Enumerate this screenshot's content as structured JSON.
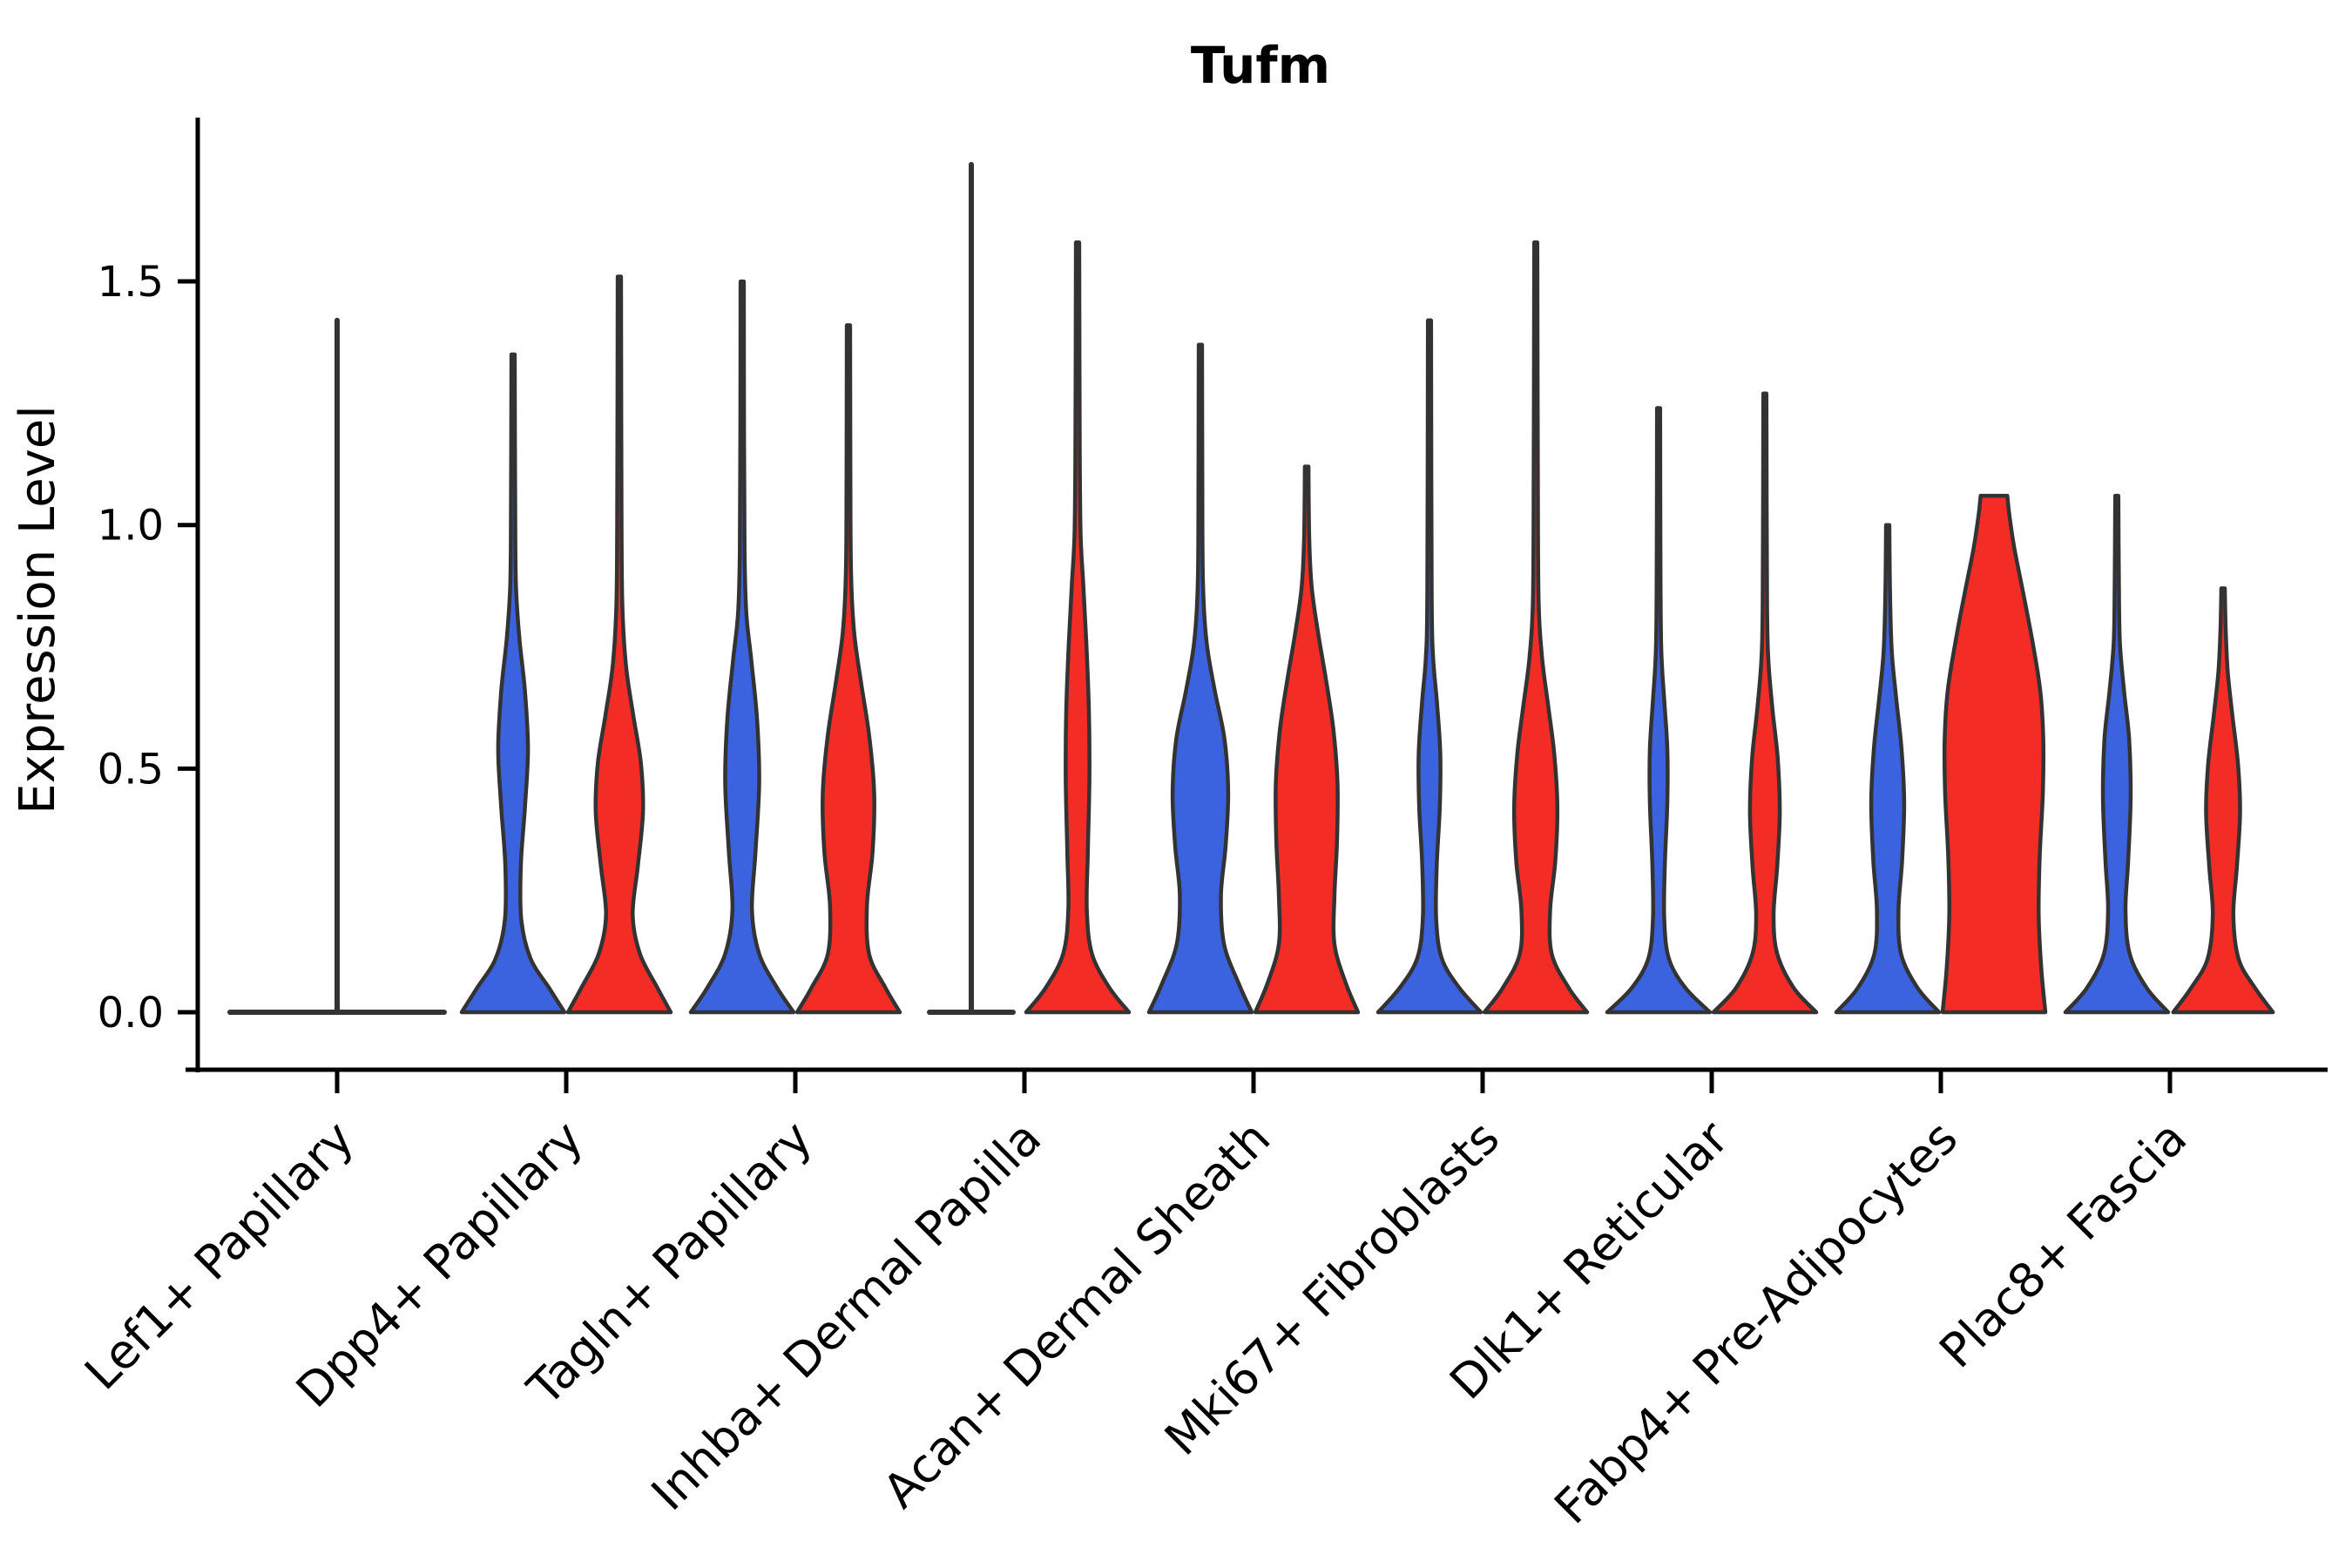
{
  "chart_data": {
    "type": "violin",
    "title": "Tufm",
    "ylabel": "Expression Level",
    "xlabel": "",
    "ytick_labels": [
      "0.0",
      "0.5",
      "1.0",
      "1.5"
    ],
    "ytick_values": [
      0.0,
      0.5,
      1.0,
      1.5
    ],
    "ylim": [
      -0.06,
      1.8
    ],
    "grid": false,
    "legend_position": "none",
    "colors": {
      "blue": "#3C63DF",
      "red": "#F32D26",
      "outline": "#333333",
      "axis": "#000000"
    },
    "categories": [
      {
        "label": "Lef1+ Papillary",
        "violins": [
          {
            "series": "blue",
            "shape": "flat",
            "full_group_width": true,
            "tail_max": 1.42
          }
        ]
      },
      {
        "label": "Dpp4+ Papillary",
        "violins": [
          {
            "series": "blue",
            "shape": "kde",
            "tail_max": 1.35,
            "profile": [
              [
                0,
                1.0
              ],
              [
                0.05,
                0.7
              ],
              [
                0.11,
                0.34
              ],
              [
                0.19,
                0.16
              ],
              [
                0.3,
                0.15
              ],
              [
                0.42,
                0.23
              ],
              [
                0.54,
                0.29
              ],
              [
                0.66,
                0.23
              ],
              [
                0.77,
                0.12
              ],
              [
                0.88,
                0.055
              ],
              [
                1.05,
                0.04
              ],
              [
                1.35,
                0.032
              ]
            ]
          },
          {
            "series": "red",
            "shape": "kde",
            "tail_max": 1.51,
            "profile": [
              [
                0,
                1.0
              ],
              [
                0.05,
                0.74
              ],
              [
                0.12,
                0.4
              ],
              [
                0.2,
                0.26
              ],
              [
                0.3,
                0.36
              ],
              [
                0.41,
                0.46
              ],
              [
                0.51,
                0.42
              ],
              [
                0.61,
                0.27
              ],
              [
                0.71,
                0.13
              ],
              [
                0.83,
                0.06
              ],
              [
                1.0,
                0.042
              ],
              [
                1.51,
                0.032
              ]
            ]
          }
        ]
      },
      {
        "label": "Tagln+ Papillary",
        "violins": [
          {
            "series": "blue",
            "shape": "kde",
            "tail_max": 1.5,
            "profile": [
              [
                0,
                1.0
              ],
              [
                0.05,
                0.68
              ],
              [
                0.12,
                0.33
              ],
              [
                0.21,
                0.19
              ],
              [
                0.33,
                0.26
              ],
              [
                0.47,
                0.33
              ],
              [
                0.6,
                0.29
              ],
              [
                0.72,
                0.18
              ],
              [
                0.82,
                0.08
              ],
              [
                0.95,
                0.045
              ],
              [
                1.2,
                0.036
              ],
              [
                1.5,
                0.032
              ]
            ]
          },
          {
            "series": "red",
            "shape": "kde",
            "tail_max": 1.41,
            "profile": [
              [
                0,
                1.0
              ],
              [
                0.05,
                0.72
              ],
              [
                0.12,
                0.4
              ],
              [
                0.22,
                0.36
              ],
              [
                0.33,
                0.47
              ],
              [
                0.45,
                0.5
              ],
              [
                0.57,
                0.4
              ],
              [
                0.68,
                0.24
              ],
              [
                0.78,
                0.11
              ],
              [
                0.9,
                0.05
              ],
              [
                1.1,
                0.038
              ],
              [
                1.41,
                0.032
              ]
            ]
          }
        ]
      },
      {
        "label": "Inhba+ Dermal Papilla",
        "violins": [
          {
            "series": "blue",
            "shape": "flat",
            "full_group_width": false,
            "tail_max": 1.74
          },
          {
            "series": "red",
            "shape": "kde",
            "tail_max": 1.58,
            "profile": [
              [
                0,
                1.0
              ],
              [
                0.05,
                0.62
              ],
              [
                0.12,
                0.28
              ],
              [
                0.21,
                0.18
              ],
              [
                0.33,
                0.2
              ],
              [
                0.48,
                0.23
              ],
              [
                0.62,
                0.22
              ],
              [
                0.76,
                0.17
              ],
              [
                0.88,
                0.11
              ],
              [
                0.98,
                0.06
              ],
              [
                1.15,
                0.042
              ],
              [
                1.58,
                0.032
              ]
            ]
          }
        ]
      },
      {
        "label": "Acan+ Dermal Sheath",
        "violins": [
          {
            "series": "blue",
            "shape": "kde",
            "tail_max": 1.37,
            "profile": [
              [
                0,
                1.0
              ],
              [
                0.06,
                0.74
              ],
              [
                0.14,
                0.46
              ],
              [
                0.24,
                0.4
              ],
              [
                0.34,
                0.49
              ],
              [
                0.45,
                0.54
              ],
              [
                0.56,
                0.47
              ],
              [
                0.66,
                0.28
              ],
              [
                0.76,
                0.12
              ],
              [
                0.88,
                0.05
              ],
              [
                1.1,
                0.038
              ],
              [
                1.37,
                0.032
              ]
            ]
          },
          {
            "series": "red",
            "shape": "kde",
            "tail_max": 1.12,
            "profile": [
              [
                0,
                1.0
              ],
              [
                0.06,
                0.76
              ],
              [
                0.14,
                0.54
              ],
              [
                0.24,
                0.54
              ],
              [
                0.35,
                0.59
              ],
              [
                0.47,
                0.6
              ],
              [
                0.58,
                0.52
              ],
              [
                0.68,
                0.38
              ],
              [
                0.78,
                0.22
              ],
              [
                0.87,
                0.1
              ],
              [
                0.97,
                0.05
              ],
              [
                1.12,
                0.035
              ]
            ]
          }
        ]
      },
      {
        "label": "Mki67+ Fibroblasts",
        "violins": [
          {
            "series": "blue",
            "shape": "kde",
            "tail_max": 1.42,
            "profile": [
              [
                0,
                1.0
              ],
              [
                0.05,
                0.58
              ],
              [
                0.11,
                0.24
              ],
              [
                0.19,
                0.13
              ],
              [
                0.3,
                0.14
              ],
              [
                0.42,
                0.2
              ],
              [
                0.53,
                0.21
              ],
              [
                0.63,
                0.15
              ],
              [
                0.73,
                0.07
              ],
              [
                0.86,
                0.042
              ],
              [
                1.42,
                0.03
              ]
            ]
          },
          {
            "series": "red",
            "shape": "kde",
            "tail_max": 1.58,
            "profile": [
              [
                0,
                1.0
              ],
              [
                0.05,
                0.64
              ],
              [
                0.12,
                0.31
              ],
              [
                0.21,
                0.28
              ],
              [
                0.31,
                0.38
              ],
              [
                0.42,
                0.42
              ],
              [
                0.53,
                0.36
              ],
              [
                0.63,
                0.24
              ],
              [
                0.73,
                0.12
              ],
              [
                0.85,
                0.055
              ],
              [
                1.1,
                0.04
              ],
              [
                1.58,
                0.03
              ]
            ]
          }
        ]
      },
      {
        "label": "Dlk1+ Reticular",
        "violins": [
          {
            "series": "blue",
            "shape": "kde",
            "tail_max": 1.24,
            "profile": [
              [
                0,
                1.0
              ],
              [
                0.05,
                0.52
              ],
              [
                0.11,
                0.2
              ],
              [
                0.19,
                0.11
              ],
              [
                0.3,
                0.12
              ],
              [
                0.43,
                0.17
              ],
              [
                0.54,
                0.17
              ],
              [
                0.64,
                0.11
              ],
              [
                0.75,
                0.05
              ],
              [
                0.95,
                0.035
              ],
              [
                1.24,
                0.03
              ]
            ]
          },
          {
            "series": "red",
            "shape": "kde",
            "tail_max": 1.27,
            "profile": [
              [
                0,
                1.0
              ],
              [
                0.05,
                0.56
              ],
              [
                0.12,
                0.24
              ],
              [
                0.2,
                0.17
              ],
              [
                0.3,
                0.24
              ],
              [
                0.41,
                0.29
              ],
              [
                0.52,
                0.25
              ],
              [
                0.62,
                0.15
              ],
              [
                0.72,
                0.07
              ],
              [
                0.84,
                0.042
              ],
              [
                1.27,
                0.03
              ]
            ]
          }
        ]
      },
      {
        "label": "Fabp4+ Pre-Adipocytes",
        "violins": [
          {
            "series": "blue",
            "shape": "kde",
            "tail_max": 1.0,
            "profile": [
              [
                0,
                1.0
              ],
              [
                0.05,
                0.58
              ],
              [
                0.12,
                0.26
              ],
              [
                0.21,
                0.21
              ],
              [
                0.31,
                0.28
              ],
              [
                0.43,
                0.32
              ],
              [
                0.54,
                0.27
              ],
              [
                0.64,
                0.17
              ],
              [
                0.74,
                0.08
              ],
              [
                0.86,
                0.045
              ],
              [
                1.0,
                0.032
              ]
            ]
          },
          {
            "series": "red",
            "shape": "kde",
            "tail_max": 1.06,
            "profile": [
              [
                0,
                1.0
              ],
              [
                0.09,
                0.92
              ],
              [
                0.2,
                0.87
              ],
              [
                0.32,
                0.89
              ],
              [
                0.45,
                0.95
              ],
              [
                0.56,
                0.96
              ],
              [
                0.66,
                0.9
              ],
              [
                0.76,
                0.75
              ],
              [
                0.86,
                0.57
              ],
              [
                0.95,
                0.4
              ],
              [
                1.02,
                0.3
              ],
              [
                1.06,
                0.26
              ]
            ]
          }
        ]
      },
      {
        "label": "Plac8+ Fascia",
        "violins": [
          {
            "series": "blue",
            "shape": "kde",
            "tail_max": 1.06,
            "profile": [
              [
                0,
                1.0
              ],
              [
                0.05,
                0.58
              ],
              [
                0.12,
                0.25
              ],
              [
                0.21,
                0.17
              ],
              [
                0.31,
                0.22
              ],
              [
                0.44,
                0.27
              ],
              [
                0.56,
                0.24
              ],
              [
                0.66,
                0.14
              ],
              [
                0.76,
                0.06
              ],
              [
                0.88,
                0.04
              ],
              [
                1.06,
                0.03
              ]
            ]
          },
          {
            "series": "red",
            "shape": "kde",
            "tail_max": 0.87,
            "profile": [
              [
                0,
                0.97
              ],
              [
                0.05,
                0.62
              ],
              [
                0.11,
                0.3
              ],
              [
                0.2,
                0.2
              ],
              [
                0.3,
                0.27
              ],
              [
                0.41,
                0.33
              ],
              [
                0.51,
                0.29
              ],
              [
                0.61,
                0.18
              ],
              [
                0.7,
                0.09
              ],
              [
                0.79,
                0.05
              ],
              [
                0.87,
                0.034
              ]
            ]
          }
        ]
      }
    ]
  }
}
